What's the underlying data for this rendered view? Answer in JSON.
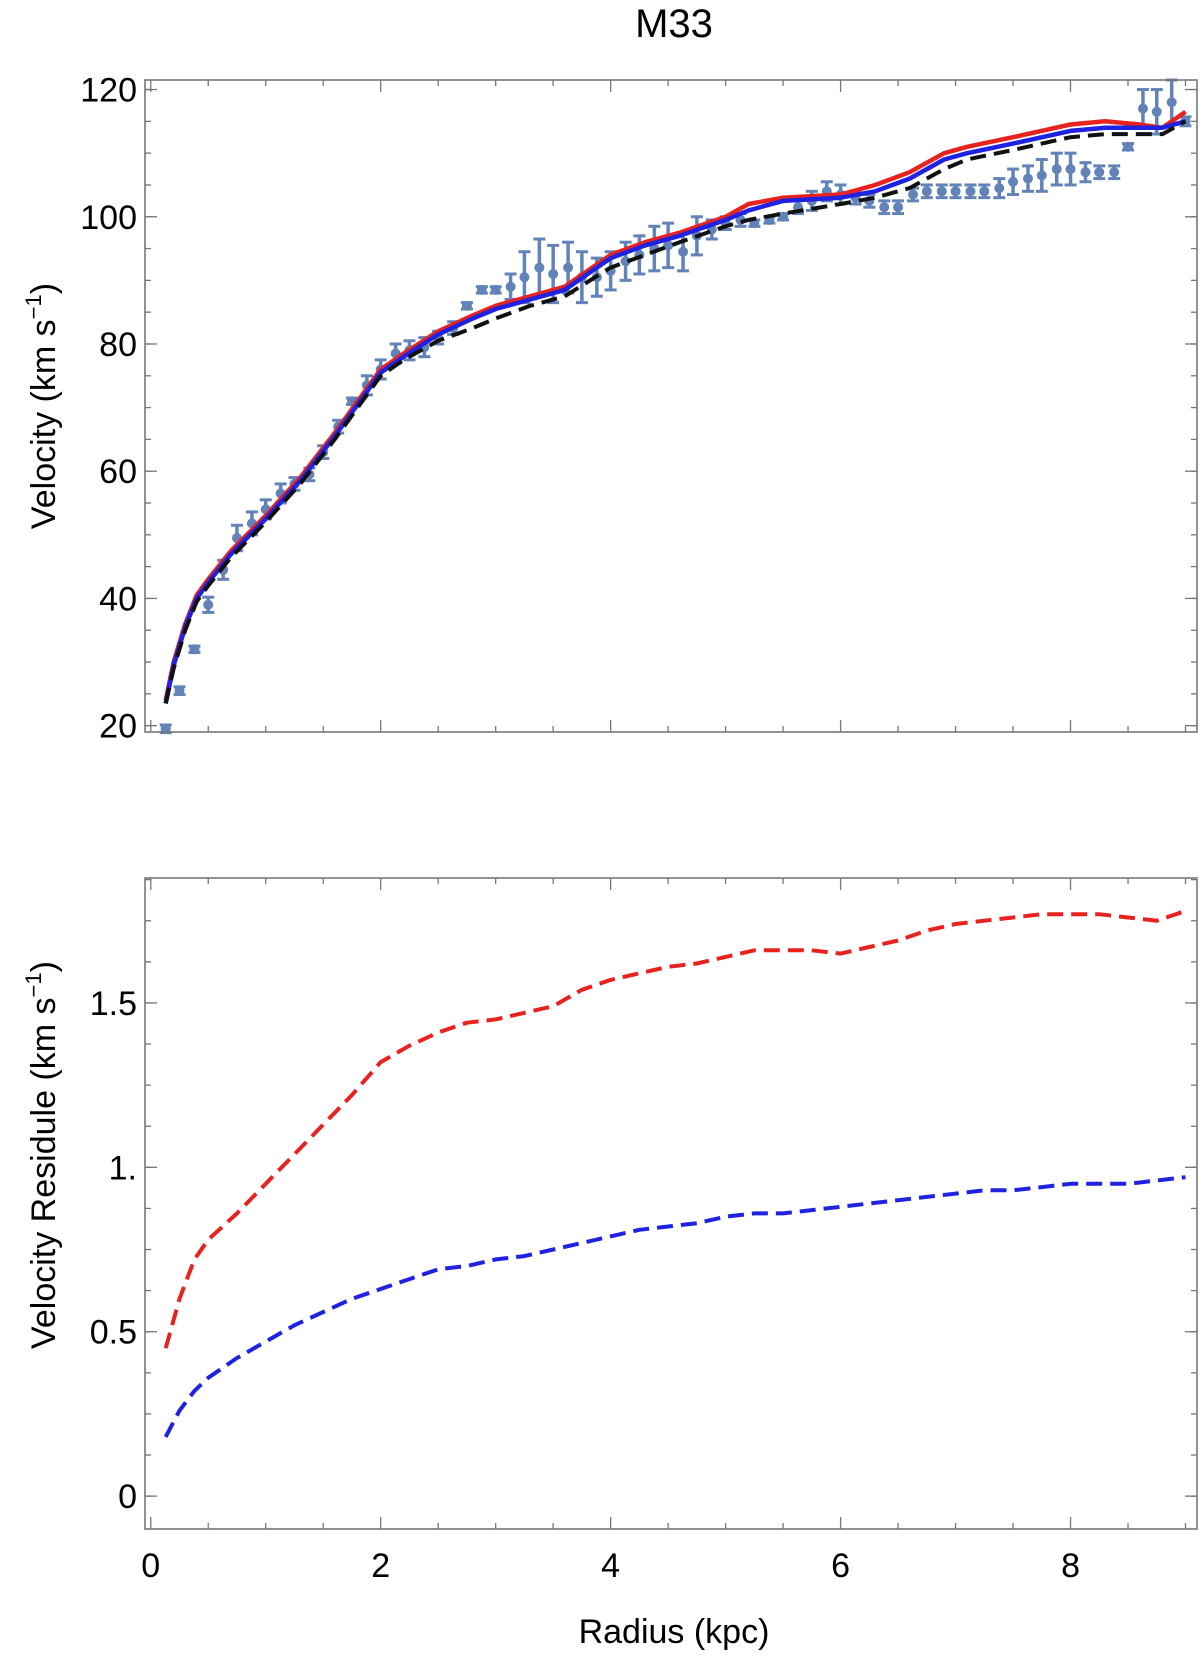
{
  "chart_data": [
    {
      "type": "line",
      "title": "M33",
      "xlabel": "",
      "ylabel": "Velocity (km s^-1)",
      "ylabel_parts": {
        "main": "Velocity (km s",
        "exp": "−1",
        "close": ")"
      },
      "xlim": [
        -0.05,
        9.1
      ],
      "ylim": [
        19,
        121.5
      ],
      "yticks": [
        20,
        40,
        60,
        80,
        100,
        120
      ],
      "ytick_labels": [
        "20",
        "40",
        "60",
        "80",
        "100",
        "120"
      ],
      "xticks_major": [
        0,
        2,
        4,
        6,
        8
      ],
      "grid": false,
      "series": [
        {
          "style": "points-with-error-bars",
          "color": "#6283b8",
          "points": [
            [
              0.13,
              19.5,
              0.6
            ],
            [
              0.25,
              25.5,
              0.6
            ],
            [
              0.38,
              32.0,
              0.5
            ],
            [
              0.5,
              39.0,
              1.2
            ],
            [
              0.63,
              44.5,
              1.5
            ],
            [
              0.75,
              49.5,
              2.0
            ],
            [
              0.88,
              51.8,
              1.8
            ],
            [
              1.0,
              54.0,
              1.5
            ],
            [
              1.13,
              56.5,
              1.5
            ],
            [
              1.25,
              58.0,
              1.0
            ],
            [
              1.38,
              59.5,
              1.0
            ],
            [
              1.5,
              63.0,
              1.0
            ],
            [
              1.63,
              67.0,
              1.0
            ],
            [
              1.75,
              71.0,
              0.5
            ],
            [
              1.88,
              73.5,
              1.5
            ],
            [
              2.0,
              76.0,
              1.5
            ],
            [
              2.13,
              78.5,
              1.5
            ],
            [
              2.25,
              79.0,
              1.5
            ],
            [
              2.38,
              79.5,
              1.5
            ],
            [
              2.5,
              81.0,
              1.0
            ],
            [
              2.63,
              82.5,
              1.0
            ],
            [
              2.75,
              86.0,
              0.5
            ],
            [
              2.88,
              88.5,
              0.5
            ],
            [
              3.0,
              88.5,
              0.5
            ],
            [
              3.13,
              89.0,
              2.0
            ],
            [
              3.25,
              90.5,
              4.0
            ],
            [
              3.38,
              92.0,
              4.5
            ],
            [
              3.5,
              91.0,
              4.5
            ],
            [
              3.63,
              92.0,
              4.0
            ],
            [
              3.75,
              90.5,
              4.0
            ],
            [
              3.88,
              90.5,
              3.0
            ],
            [
              4.0,
              91.5,
              3.0
            ],
            [
              4.13,
              93.0,
              3.0
            ],
            [
              4.25,
              94.0,
              3.0
            ],
            [
              4.38,
              95.0,
              3.5
            ],
            [
              4.5,
              95.5,
              3.5
            ],
            [
              4.63,
              94.5,
              3.0
            ],
            [
              4.75,
              97.0,
              3.0
            ],
            [
              4.88,
              98.0,
              1.5
            ],
            [
              5.0,
              99.0,
              1.0
            ],
            [
              5.13,
              99.5,
              1.0
            ],
            [
              5.25,
              99.0,
              0.5
            ],
            [
              5.38,
              99.5,
              0.5
            ],
            [
              5.5,
              100.0,
              0.5
            ],
            [
              5.63,
              101.5,
              1.0
            ],
            [
              5.75,
              102.5,
              1.5
            ],
            [
              5.88,
              104.0,
              1.5
            ],
            [
              6.0,
              103.5,
              1.5
            ],
            [
              6.13,
              103.0,
              1.0
            ],
            [
              6.25,
              102.5,
              1.0
            ],
            [
              6.38,
              101.5,
              1.0
            ],
            [
              6.5,
              101.5,
              1.0
            ],
            [
              6.63,
              103.5,
              1.0
            ],
            [
              6.75,
              104.0,
              1.0
            ],
            [
              6.88,
              104.0,
              1.0
            ],
            [
              7.0,
              104.0,
              1.0
            ],
            [
              7.13,
              104.0,
              1.0
            ],
            [
              7.25,
              104.0,
              1.0
            ],
            [
              7.38,
              104.5,
              1.5
            ],
            [
              7.5,
              105.5,
              2.0
            ],
            [
              7.63,
              106.0,
              2.0
            ],
            [
              7.75,
              106.5,
              2.5
            ],
            [
              7.88,
              107.5,
              2.5
            ],
            [
              8.0,
              107.5,
              2.5
            ],
            [
              8.13,
              107.0,
              1.5
            ],
            [
              8.25,
              107.0,
              1.0
            ],
            [
              8.38,
              107.0,
              1.0
            ],
            [
              8.5,
              111.0,
              0.5
            ],
            [
              8.63,
              117.0,
              3.0
            ],
            [
              8.75,
              116.5,
              3.5
            ],
            [
              8.88,
              118.0,
              3.5
            ],
            [
              9.0,
              115.0,
              0.7
            ]
          ]
        },
        {
          "style": "solid",
          "color": "#e8231f",
          "x": [
            0.13,
            0.2,
            0.3,
            0.4,
            0.5,
            0.7,
            1.0,
            1.3,
            1.6,
            1.8,
            2.0,
            2.2,
            2.5,
            2.8,
            3.0,
            3.3,
            3.6,
            4.0,
            4.3,
            4.6,
            5.0,
            5.2,
            5.5,
            6.0,
            6.3,
            6.6,
            6.9,
            7.1,
            7.5,
            8.0,
            8.3,
            8.6,
            8.8,
            9.0
          ],
          "y": [
            24.0,
            30.0,
            36.0,
            40.5,
            43.0,
            47.5,
            53.0,
            59.0,
            66.0,
            71.0,
            76.0,
            78.5,
            82.0,
            84.5,
            86.0,
            87.5,
            89.0,
            94.0,
            96.0,
            97.5,
            100.0,
            102.0,
            103.0,
            103.5,
            105.0,
            107.0,
            110.0,
            111.0,
            112.5,
            114.5,
            115.0,
            114.5,
            114.0,
            116.5
          ]
        },
        {
          "style": "solid",
          "color": "#1f22e0",
          "x": [
            0.13,
            0.2,
            0.3,
            0.4,
            0.5,
            0.7,
            1.0,
            1.3,
            1.6,
            1.8,
            2.0,
            2.2,
            2.5,
            2.8,
            3.0,
            3.3,
            3.6,
            4.0,
            4.3,
            4.6,
            5.0,
            5.2,
            5.5,
            6.0,
            6.3,
            6.6,
            6.9,
            7.1,
            7.5,
            8.0,
            8.3,
            8.6,
            8.8,
            9.0
          ],
          "y": [
            23.5,
            29.5,
            35.5,
            40.0,
            42.5,
            47.0,
            52.5,
            58.5,
            65.5,
            70.5,
            75.5,
            78.0,
            81.5,
            84.0,
            85.5,
            87.0,
            88.5,
            93.5,
            95.5,
            97.0,
            99.5,
            101.0,
            102.5,
            103.0,
            104.0,
            106.0,
            109.0,
            110.0,
            111.5,
            113.5,
            114.0,
            114.0,
            114.0,
            115.0
          ]
        },
        {
          "style": "dashed",
          "color": "#111111",
          "x": [
            0.13,
            0.2,
            0.3,
            0.4,
            0.5,
            0.7,
            1.0,
            1.3,
            1.6,
            1.8,
            2.0,
            2.2,
            2.5,
            2.8,
            3.0,
            3.3,
            3.6,
            4.0,
            4.3,
            4.6,
            5.0,
            5.2,
            5.5,
            6.0,
            6.3,
            6.6,
            6.9,
            7.1,
            7.5,
            8.0,
            8.3,
            8.6,
            8.8,
            9.0
          ],
          "y": [
            23.5,
            29.0,
            35.0,
            39.5,
            42.0,
            46.5,
            52.0,
            58.0,
            65.0,
            70.0,
            75.0,
            77.5,
            80.5,
            82.5,
            84.0,
            86.0,
            87.5,
            92.0,
            94.0,
            96.0,
            98.5,
            99.5,
            100.5,
            102.0,
            103.0,
            104.5,
            107.5,
            109.0,
            110.5,
            112.5,
            113.0,
            113.0,
            113.0,
            115.0
          ]
        }
      ]
    },
    {
      "type": "line",
      "title": "",
      "xlabel": "Radius (kpc)",
      "ylabel": "Velocity Residule (km s^-1)",
      "ylabel_parts": {
        "main": "Velocity Residule (km s",
        "exp": "−1",
        "close": ")"
      },
      "xlim": [
        -0.05,
        9.1
      ],
      "ylim": [
        -0.1,
        1.88
      ],
      "yticks": [
        0,
        0.5,
        1.0,
        1.5
      ],
      "ytick_labels": [
        "0",
        "0.5",
        "1.",
        "1.5"
      ],
      "xticks_major": [
        0,
        2,
        4,
        6,
        8
      ],
      "xtick_labels": [
        "0",
        "2",
        "4",
        "6",
        "8"
      ],
      "grid": false,
      "series": [
        {
          "style": "dashed",
          "color": "#e8231f",
          "x": [
            0.13,
            0.25,
            0.38,
            0.5,
            0.75,
            1.0,
            1.25,
            1.5,
            1.75,
            2.0,
            2.25,
            2.5,
            2.75,
            3.0,
            3.25,
            3.5,
            3.75,
            4.0,
            4.25,
            4.5,
            4.75,
            5.0,
            5.25,
            5.5,
            5.75,
            6.0,
            6.25,
            6.5,
            6.75,
            7.0,
            7.25,
            7.5,
            7.75,
            8.0,
            8.25,
            8.5,
            8.75,
            9.0
          ],
          "y": [
            0.45,
            0.6,
            0.72,
            0.78,
            0.86,
            0.95,
            1.04,
            1.13,
            1.22,
            1.32,
            1.37,
            1.41,
            1.44,
            1.45,
            1.47,
            1.49,
            1.54,
            1.57,
            1.59,
            1.61,
            1.62,
            1.64,
            1.66,
            1.66,
            1.66,
            1.65,
            1.67,
            1.69,
            1.72,
            1.74,
            1.75,
            1.76,
            1.77,
            1.77,
            1.77,
            1.76,
            1.75,
            1.78
          ]
        },
        {
          "style": "dashed",
          "color": "#1f22e0",
          "x": [
            0.13,
            0.25,
            0.38,
            0.5,
            0.75,
            1.0,
            1.25,
            1.5,
            1.75,
            2.0,
            2.25,
            2.5,
            2.75,
            3.0,
            3.25,
            3.5,
            3.75,
            4.0,
            4.25,
            4.5,
            4.75,
            5.0,
            5.25,
            5.5,
            5.75,
            6.0,
            6.25,
            6.5,
            6.75,
            7.0,
            7.25,
            7.5,
            7.75,
            8.0,
            8.25,
            8.5,
            8.75,
            9.0
          ],
          "y": [
            0.18,
            0.26,
            0.32,
            0.36,
            0.42,
            0.47,
            0.52,
            0.56,
            0.6,
            0.63,
            0.66,
            0.69,
            0.7,
            0.72,
            0.73,
            0.75,
            0.77,
            0.79,
            0.81,
            0.82,
            0.83,
            0.85,
            0.86,
            0.86,
            0.87,
            0.88,
            0.89,
            0.9,
            0.91,
            0.92,
            0.93,
            0.93,
            0.94,
            0.95,
            0.95,
            0.95,
            0.96,
            0.97
          ]
        }
      ]
    }
  ]
}
